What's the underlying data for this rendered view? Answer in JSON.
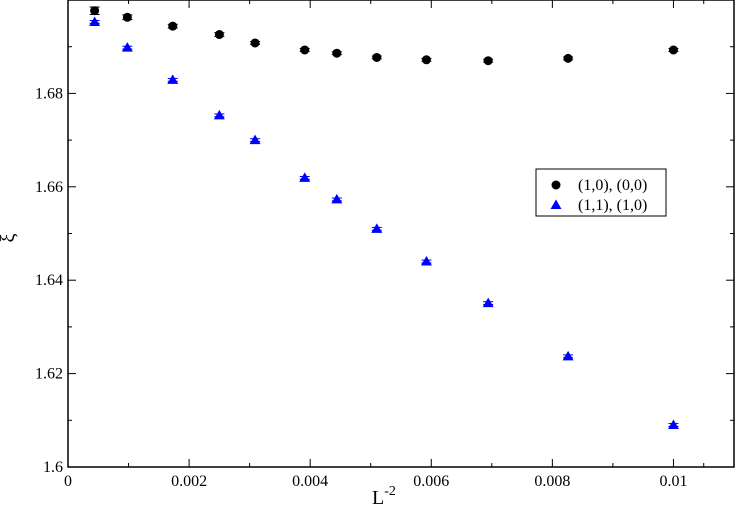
{
  "chart_data": {
    "type": "scatter",
    "xlabel": "L",
    "xlabel_superscript": "-2",
    "ylabel": "ξ",
    "xlim": [
      0,
      0.011
    ],
    "ylim": [
      1.6,
      1.7
    ],
    "x_ticks": [
      {
        "value": 0,
        "label": "0"
      },
      {
        "value": 0.002,
        "label": "0.002"
      },
      {
        "value": 0.004,
        "label": "0.004"
      },
      {
        "value": 0.006,
        "label": "0.006"
      },
      {
        "value": 0.008,
        "label": "0.008"
      },
      {
        "value": 0.01,
        "label": "0.01"
      }
    ],
    "y_ticks": [
      {
        "value": 1.6,
        "label": "1.6"
      },
      {
        "value": 1.62,
        "label": "1.62"
      },
      {
        "value": 1.64,
        "label": "1.64"
      },
      {
        "value": 1.66,
        "label": "1.66"
      },
      {
        "value": 1.68,
        "label": "1.68"
      }
    ],
    "grid": false,
    "legend_position": "right",
    "series": [
      {
        "name": "(1,0), (0,0)",
        "marker": "circle",
        "color": "#000000",
        "x": [
          0.00044,
          0.00098,
          0.00173,
          0.0025,
          0.00309,
          0.00391,
          0.00444,
          0.0051,
          0.00592,
          0.00694,
          0.00826,
          0.01
        ],
        "y": [
          1.6977,
          1.6963,
          1.6944,
          1.6926,
          1.6908,
          1.6893,
          1.6886,
          1.6877,
          1.6872,
          1.687,
          1.6875,
          1.6893
        ],
        "yerr": [
          0.0008,
          0.0005,
          0.0004,
          0.0004,
          0.0003,
          0.0003,
          0.0003,
          0.0003,
          0.0003,
          0.0003,
          0.0003,
          0.0003
        ]
      },
      {
        "name": "(1,1), (1,0)",
        "marker": "triangle",
        "color": "#0000ff",
        "x": [
          0.00044,
          0.00098,
          0.00173,
          0.0025,
          0.00309,
          0.00391,
          0.00444,
          0.0051,
          0.00592,
          0.00694,
          0.00826,
          0.01
        ],
        "y": [
          1.6953,
          1.6898,
          1.6829,
          1.6753,
          1.67,
          1.6619,
          1.6573,
          1.651,
          1.644,
          1.6351,
          1.6237,
          1.609
        ],
        "yerr": [
          0.0003,
          0.0003,
          0.0003,
          0.0003,
          0.0003,
          0.0003,
          0.0003,
          0.0003,
          0.0003,
          0.0003,
          0.0003,
          0.0003
        ]
      }
    ]
  }
}
